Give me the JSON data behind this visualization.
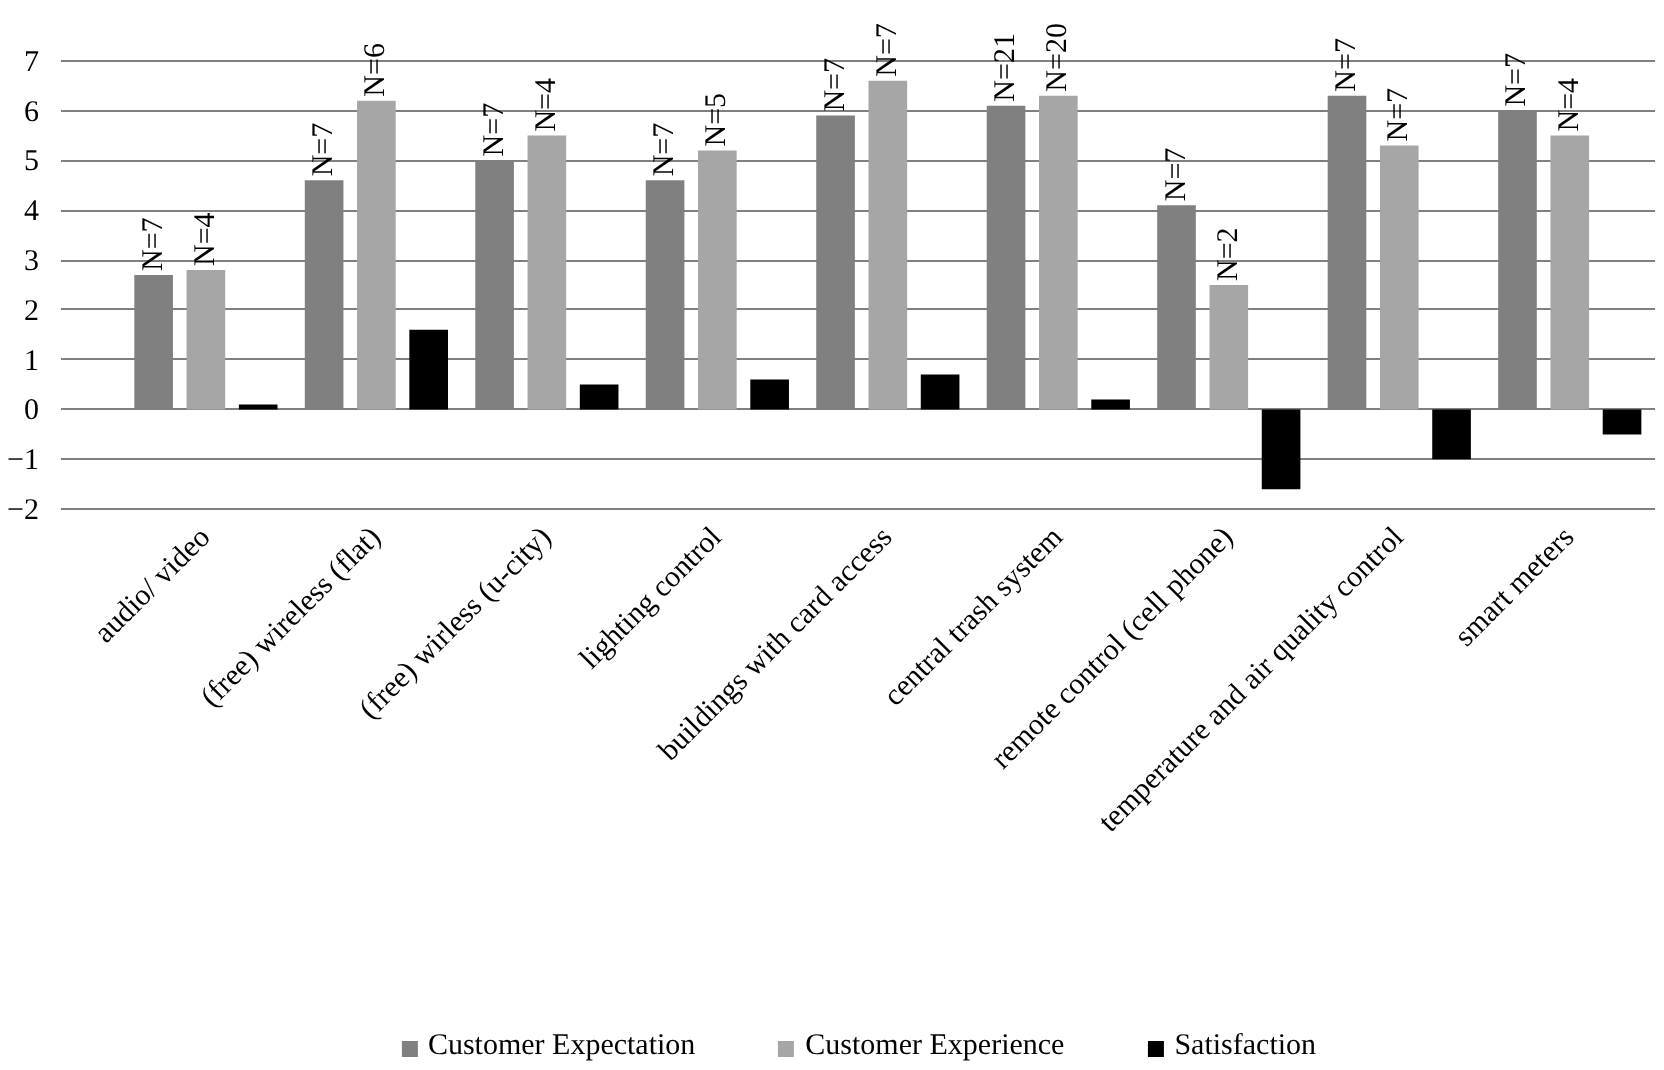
{
  "chart_data": {
    "type": "bar",
    "categories": [
      "audio/ video",
      "(free) wireless (flat)",
      "(free) wirless (u-city)",
      "lighting control",
      "buildings with card access",
      "central trash system",
      "remote control (cell phone)",
      "temperature and air quality control",
      "smart meters"
    ],
    "series": [
      {
        "name": "Customer Expectation",
        "color": "#808080",
        "values": [
          2.7,
          4.6,
          5.0,
          4.6,
          5.9,
          6.1,
          4.1,
          6.3,
          6.0
        ]
      },
      {
        "name": "Customer Experience",
        "color": "#a6a6a6",
        "values": [
          2.8,
          6.2,
          5.5,
          5.2,
          6.6,
          6.3,
          2.5,
          5.3,
          5.5
        ]
      },
      {
        "name": "Satisfaction",
        "color": "#000000",
        "values": [
          0.1,
          1.6,
          0.5,
          0.6,
          0.7,
          0.2,
          -1.6,
          -1.0,
          -0.5
        ]
      }
    ],
    "annotations": [
      "N=7",
      "N=4",
      "N=7",
      "N=6",
      "N=7",
      "N=4",
      "N=7",
      "N=5",
      "N=7",
      "N=7",
      "N=21",
      "N=20",
      "N=7",
      "N=2",
      "N=7",
      "N=7",
      "N=7",
      "N=4"
    ],
    "ylim": [
      -2,
      7
    ],
    "yticks": [
      -2,
      -1,
      0,
      1,
      2,
      3,
      4,
      5,
      6,
      7
    ],
    "grid": "y",
    "legend": "bottom"
  }
}
